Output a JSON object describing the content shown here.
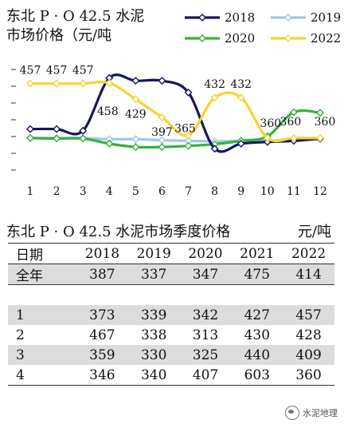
{
  "title_line1": "东北 P · O 42.5 水泥",
  "title_line2": "市场价格（元/吨",
  "chart_data": {
    "type": "line",
    "title": "东北 P · O 42.5 水泥 市场价格（元/吨",
    "x": [
      1,
      2,
      3,
      4,
      5,
      6,
      7,
      8,
      9,
      10,
      11,
      12
    ],
    "ylim": [
      310,
      475
    ],
    "series": [
      {
        "name": "2018",
        "color": "#17175e",
        "values": [
          376,
          376,
          373,
          467,
          462,
          462,
          441,
          341,
          350,
          353,
          355,
          359
        ]
      },
      {
        "name": "2019",
        "color": "#9cc8ec",
        "values": [
          360,
          360,
          360,
          358,
          358,
          356,
          355,
          354,
          355,
          355,
          357,
          358
        ]
      },
      {
        "name": "2020",
        "color": "#38b03c",
        "values": [
          360,
          359,
          359,
          350,
          344,
          344,
          346,
          349,
          355,
          363,
          406,
          405
        ]
      },
      {
        "name": "2022",
        "color": "#f7d330",
        "values": [
          457,
          457,
          457,
          458,
          429,
          397,
          365,
          432,
          432,
          360,
          360,
          360
        ]
      }
    ],
    "data_labels": [
      {
        "series": "2022",
        "index": 0,
        "text": "457"
      },
      {
        "series": "2022",
        "index": 1,
        "text": "457"
      },
      {
        "series": "2022",
        "index": 2,
        "text": "457"
      },
      {
        "series": "2022",
        "index": 3,
        "text": "458"
      },
      {
        "series": "2022",
        "index": 4,
        "text": "429"
      },
      {
        "series": "2022",
        "index": 5,
        "text": "397"
      },
      {
        "series": "2022",
        "index": 6,
        "text": "365"
      },
      {
        "series": "2022",
        "index": 7,
        "text": "432"
      },
      {
        "series": "2022",
        "index": 8,
        "text": "432"
      },
      {
        "series": "2022",
        "index": 9,
        "text": "360"
      },
      {
        "series": "2022",
        "index": 10,
        "text": "360"
      },
      {
        "series": "2022",
        "index": 11,
        "text": "360"
      }
    ],
    "legend": "top-right",
    "grid": false
  },
  "table": {
    "title": "东北 P · O 42.5 水泥市场季度价格",
    "unit": "元/吨",
    "headers": [
      "日期",
      "2018",
      "2019",
      "2020",
      "2021",
      "2022"
    ],
    "rows": [
      [
        "全年",
        "387",
        "337",
        "347",
        "475",
        "414"
      ],
      [
        "",
        "",
        "",
        "",
        "",
        ""
      ],
      [
        "1",
        "373",
        "339",
        "342",
        "427",
        "457"
      ],
      [
        "2",
        "467",
        "338",
        "313",
        "430",
        "428"
      ],
      [
        "3",
        "359",
        "330",
        "325",
        "440",
        "409"
      ],
      [
        "4",
        "346",
        "340",
        "407",
        "603",
        "360"
      ]
    ]
  },
  "watermark": "水泥地理"
}
